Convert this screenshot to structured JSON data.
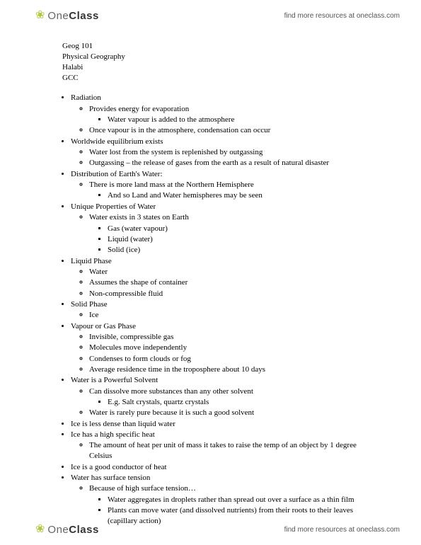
{
  "brand": {
    "name_light": "One",
    "name_bold": "Class"
  },
  "resources_text": "find more resources at oneclass.com",
  "course": {
    "code": "Geog 101",
    "title": "Physical Geography",
    "instructor": "Halabi",
    "school": "GCC"
  },
  "notes": [
    {
      "t": "Radiation",
      "c": [
        {
          "t": "Provides energy for evaporation",
          "c": [
            {
              "t": "Water vapour is added to the atmosphere"
            }
          ]
        },
        {
          "t": "Once vapour is in the atmosphere, condensation can occur"
        }
      ]
    },
    {
      "t": "Worldwide equilibrium exists",
      "c": [
        {
          "t": "Water lost from the system is replenished by outgassing"
        },
        {
          "t": "Outgassing – the release of gases from the earth as a result of natural disaster"
        }
      ]
    },
    {
      "t": "Distribution of Earth's Water:",
      "c": [
        {
          "t": "There is more land mass at the Northern Hemisphere",
          "c": [
            {
              "t": "And so Land and Water hemispheres may be seen"
            }
          ]
        }
      ]
    },
    {
      "t": "Unique Properties of Water",
      "c": [
        {
          "t": "Water exists in 3 states on Earth",
          "c": [
            {
              "t": "Gas (water vapour)"
            },
            {
              "t": "Liquid (water)"
            },
            {
              "t": "Solid (ice)"
            }
          ]
        }
      ]
    },
    {
      "t": "Liquid Phase",
      "c": [
        {
          "t": "Water"
        },
        {
          "t": "Assumes the shape of container"
        },
        {
          "t": "Non-compressible fluid"
        }
      ]
    },
    {
      "t": "Solid Phase",
      "c": [
        {
          "t": "Ice"
        }
      ]
    },
    {
      "t": "Vapour or Gas Phase",
      "c": [
        {
          "t": "Invisible, compressible gas"
        },
        {
          "t": "Molecules move independently"
        },
        {
          "t": "Condenses to form clouds or fog"
        },
        {
          "t": "Average residence time in the troposphere about 10 days"
        }
      ]
    },
    {
      "t": "Water is a Powerful Solvent",
      "c": [
        {
          "t": "Can dissolve more substances than any other solvent",
          "c": [
            {
              "t": "E.g. Salt crystals, quartz crystals"
            }
          ]
        },
        {
          "t": "Water is rarely pure because it is such a good solvent"
        }
      ]
    },
    {
      "t": "Ice is less dense than liquid water"
    },
    {
      "t": "Ice has a high specific heat",
      "c": [
        {
          "t": "The amount of heat per unit of mass it takes to raise the temp of an object by 1 degree Celsius"
        }
      ]
    },
    {
      "t": "Ice is a good conductor of heat"
    },
    {
      "t": "Water has surface tension",
      "c": [
        {
          "t": "Because of high surface tension…",
          "c": [
            {
              "t": "Water aggregates in droplets rather than spread out over a surface as a thin film"
            },
            {
              "t": "Plants can move water (and dissolved nutrients) from their roots to their leaves (capillary action)"
            }
          ]
        }
      ]
    }
  ]
}
